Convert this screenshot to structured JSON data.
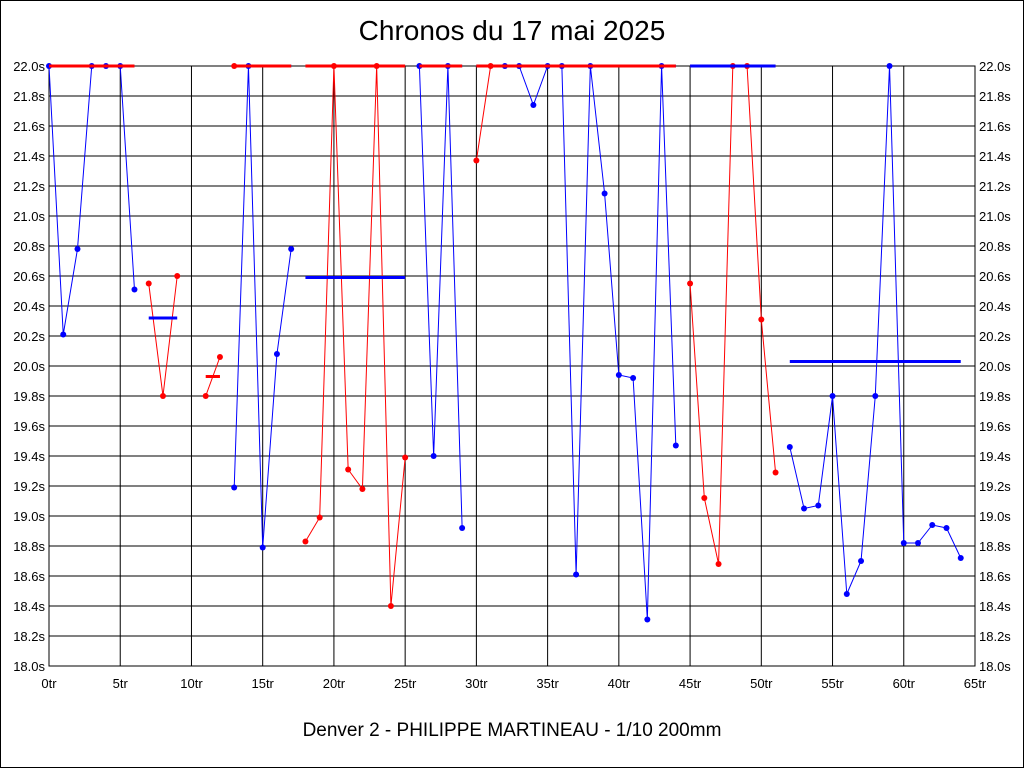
{
  "chart_data": {
    "type": "line",
    "title": "Chronos du 17 mai 2025",
    "subtitle": "Denver 2 - PHILIPPE MARTINEAU - 1/10 200mm",
    "xlim": [
      0,
      65
    ],
    "ylim": [
      18.0,
      22.0
    ],
    "x_ticks": [
      "0tr",
      "5tr",
      "10tr",
      "15tr",
      "20tr",
      "25tr",
      "30tr",
      "35tr",
      "40tr",
      "45tr",
      "50tr",
      "55tr",
      "60tr",
      "65tr"
    ],
    "y_ticks": [
      "18.0s",
      "18.2s",
      "18.4s",
      "18.6s",
      "18.8s",
      "19.0s",
      "19.2s",
      "19.4s",
      "19.6s",
      "19.8s",
      "20.0s",
      "20.2s",
      "20.4s",
      "20.6s",
      "20.8s",
      "21.0s",
      "21.2s",
      "21.4s",
      "21.6s",
      "21.8s",
      "22.0s"
    ],
    "grid": true,
    "colors": {
      "blue": "#0000ff",
      "red": "#ff0000"
    },
    "series": [
      {
        "color": "blue",
        "points": [
          [
            0,
            22.0
          ],
          [
            1,
            20.21
          ],
          [
            2,
            20.78
          ],
          [
            3,
            22.0
          ],
          [
            4,
            22.0
          ],
          [
            5,
            22.0
          ],
          [
            6,
            20.51
          ]
        ],
        "avg": [
          0,
          6,
          22.0
        ]
      },
      {
        "color": "red",
        "points": [
          [
            7,
            20.55
          ],
          [
            8,
            19.8
          ],
          [
            9,
            20.6
          ]
        ],
        "avg": [
          0,
          6,
          22.0
        ]
      },
      {
        "color": "blue",
        "points": [],
        "avg": [
          7,
          9,
          20.32
        ]
      },
      {
        "color": "red",
        "points": [
          [
            11,
            19.8
          ],
          [
            12,
            20.06
          ]
        ],
        "avg": [
          11,
          12,
          19.93
        ]
      },
      {
        "color": "blue",
        "points": [
          [
            13,
            19.19
          ],
          [
            14,
            22.0
          ],
          [
            15,
            18.79
          ],
          [
            16,
            20.08
          ],
          [
            17,
            20.78
          ]
        ],
        "avg": [
          13,
          17,
          22.0
        ]
      },
      {
        "color": "red",
        "points": [
          [
            13,
            22.0
          ]
        ],
        "avg": [
          13,
          17,
          22.0
        ]
      },
      {
        "color": "red",
        "points": [
          [
            18,
            18.83
          ],
          [
            19,
            18.99
          ],
          [
            20,
            22.0
          ],
          [
            21,
            19.31
          ],
          [
            22,
            19.18
          ],
          [
            23,
            22.0
          ],
          [
            24,
            18.4
          ],
          [
            25,
            19.39
          ]
        ],
        "avg": [
          18,
          25,
          22.0
        ]
      },
      {
        "color": "blue",
        "points": [],
        "avg": [
          18,
          25,
          20.59
        ]
      },
      {
        "color": "blue",
        "points": [
          [
            26,
            22.0
          ],
          [
            27,
            19.4
          ],
          [
            28,
            22.0
          ],
          [
            29,
            18.92
          ]
        ],
        "avg": [
          26,
          29,
          22.0
        ]
      },
      {
        "color": "red",
        "points": [],
        "avg": [
          26,
          29,
          22.0
        ]
      },
      {
        "color": "red",
        "points": [
          [
            30,
            21.37
          ],
          [
            31,
            22.0
          ]
        ],
        "avg": [
          30,
          31,
          22.0
        ]
      },
      {
        "color": "blue",
        "points": [
          [
            32,
            22.0
          ],
          [
            33,
            22.0
          ],
          [
            34,
            21.74
          ],
          [
            35,
            22.0
          ],
          [
            36,
            22.0
          ],
          [
            37,
            18.61
          ],
          [
            38,
            22.0
          ],
          [
            39,
            21.15
          ],
          [
            40,
            19.94
          ],
          [
            41,
            19.92
          ],
          [
            42,
            18.31
          ],
          [
            43,
            22.0
          ],
          [
            44,
            19.47
          ]
        ],
        "avg": [
          30,
          44,
          22.0
        ]
      },
      {
        "color": "red",
        "points": [],
        "avg": [
          30,
          44,
          22.0
        ]
      },
      {
        "color": "red",
        "points": [
          [
            45,
            20.55
          ],
          [
            46,
            19.12
          ],
          [
            47,
            18.68
          ],
          [
            48,
            22.0
          ],
          [
            49,
            22.0
          ],
          [
            50,
            20.31
          ],
          [
            51,
            19.29
          ]
        ],
        "avg": [
          45,
          51,
          22.0
        ]
      },
      {
        "color": "blue",
        "points": [],
        "avg": [
          45,
          51,
          22.0
        ]
      },
      {
        "color": "blue",
        "points": [
          [
            52,
            19.46
          ],
          [
            53,
            19.05
          ],
          [
            54,
            19.07
          ],
          [
            55,
            19.8
          ],
          [
            56,
            18.48
          ],
          [
            57,
            18.7
          ],
          [
            58,
            19.8
          ],
          [
            59,
            22.0
          ],
          [
            60,
            18.82
          ],
          [
            61,
            18.82
          ],
          [
            62,
            18.94
          ],
          [
            63,
            18.92
          ],
          [
            64,
            18.72
          ]
        ],
        "avg": [
          52,
          64,
          20.03
        ]
      }
    ]
  }
}
